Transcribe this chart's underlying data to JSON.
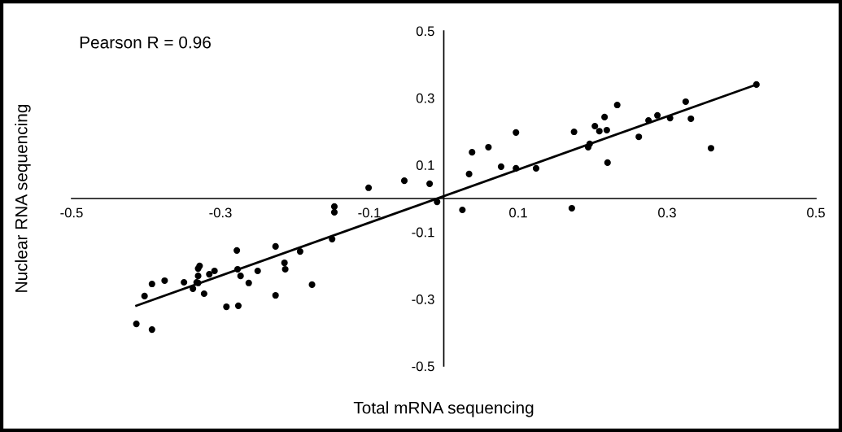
{
  "chart_data": {
    "type": "scatter",
    "xlabel": "Total mRNA sequencing",
    "ylabel": "Nuclear RNA sequencing",
    "annotations": [
      "Pearson R = 0.96"
    ],
    "xlim": [
      -0.5,
      0.5
    ],
    "ylim": [
      -0.5,
      0.5
    ],
    "xticks": [
      -0.5,
      -0.3,
      -0.1,
      0.1,
      0.3,
      0.5
    ],
    "yticks": [
      -0.5,
      -0.3,
      -0.1,
      0.1,
      0.3,
      0.5
    ],
    "grid": false,
    "series": [
      {
        "color": "#000000",
        "marker": "circle",
        "x": [
          -0.413,
          -0.392,
          -0.402,
          -0.392,
          -0.375,
          -0.349,
          -0.337,
          -0.332,
          -0.33,
          -0.33,
          -0.33,
          -0.328,
          -0.322,
          -0.315,
          -0.308,
          -0.292,
          -0.276,
          -0.278,
          -0.277,
          -0.273,
          -0.262,
          -0.25,
          -0.226,
          -0.226,
          -0.214,
          -0.213,
          -0.193,
          -0.177,
          -0.15,
          -0.147,
          -0.147,
          -0.101,
          -0.053,
          -0.019,
          -0.009,
          0.025,
          0.034,
          0.038,
          0.06,
          0.077,
          0.097,
          0.097,
          0.124,
          0.172,
          0.175,
          0.194,
          0.196,
          0.203,
          0.209,
          0.219,
          0.216,
          0.22,
          0.233,
          0.262,
          0.275,
          0.287,
          0.304,
          0.325,
          0.332,
          0.359,
          0.42
        ],
        "values": [
          -0.374,
          -0.391,
          -0.291,
          -0.255,
          -0.245,
          -0.25,
          -0.269,
          -0.25,
          -0.252,
          -0.231,
          -0.209,
          -0.201,
          -0.284,
          -0.226,
          -0.216,
          -0.323,
          -0.32,
          -0.155,
          -0.211,
          -0.231,
          -0.252,
          -0.216,
          -0.143,
          -0.289,
          -0.192,
          -0.211,
          -0.158,
          -0.257,
          -0.121,
          -0.041,
          -0.024,
          0.032,
          0.053,
          0.044,
          -0.01,
          -0.034,
          0.073,
          0.138,
          0.153,
          0.095,
          0.09,
          0.197,
          0.09,
          -0.029,
          0.199,
          0.153,
          0.163,
          0.216,
          0.201,
          0.204,
          0.243,
          0.107,
          0.279,
          0.184,
          0.233,
          0.248,
          0.24,
          0.289,
          0.238,
          0.15,
          0.34
        ]
      },
      {
        "type": "line",
        "marker": "none",
        "color": "#000000",
        "x": [
          -0.413,
          0.42
        ],
        "values": [
          -0.32,
          0.34
        ]
      }
    ]
  }
}
